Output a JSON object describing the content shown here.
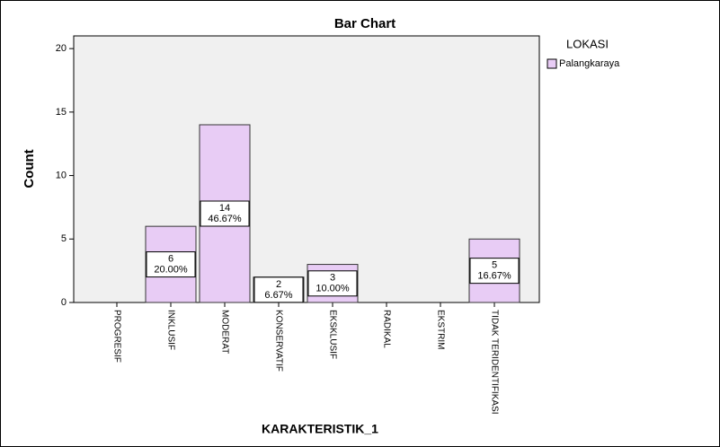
{
  "chart_data": {
    "type": "bar",
    "title": "Bar Chart",
    "x_label": "KARAKTERISTIK_1",
    "y_label": "Count",
    "legend_title": "LOKASI",
    "categories": [
      "PROGRESIF",
      "INKLUSIF",
      "MODERAT",
      "KONSERVATIF",
      "EKSKLUSIF",
      "RADIKAL",
      "EKSTRIM",
      "TIDAK TERIDENTIFIKASI"
    ],
    "series": [
      {
        "name": "Palangkaraya",
        "color": "#e8ccf5",
        "values": [
          0,
          6,
          14,
          2,
          3,
          0,
          0,
          5
        ],
        "percent_labels": [
          null,
          "20.00%",
          "46.67%",
          "6.67%",
          "10.00%",
          null,
          null,
          "16.67%"
        ]
      }
    ],
    "ylim": [
      0,
      21
    ],
    "yticks": [
      0,
      5,
      10,
      15,
      20
    ]
  }
}
